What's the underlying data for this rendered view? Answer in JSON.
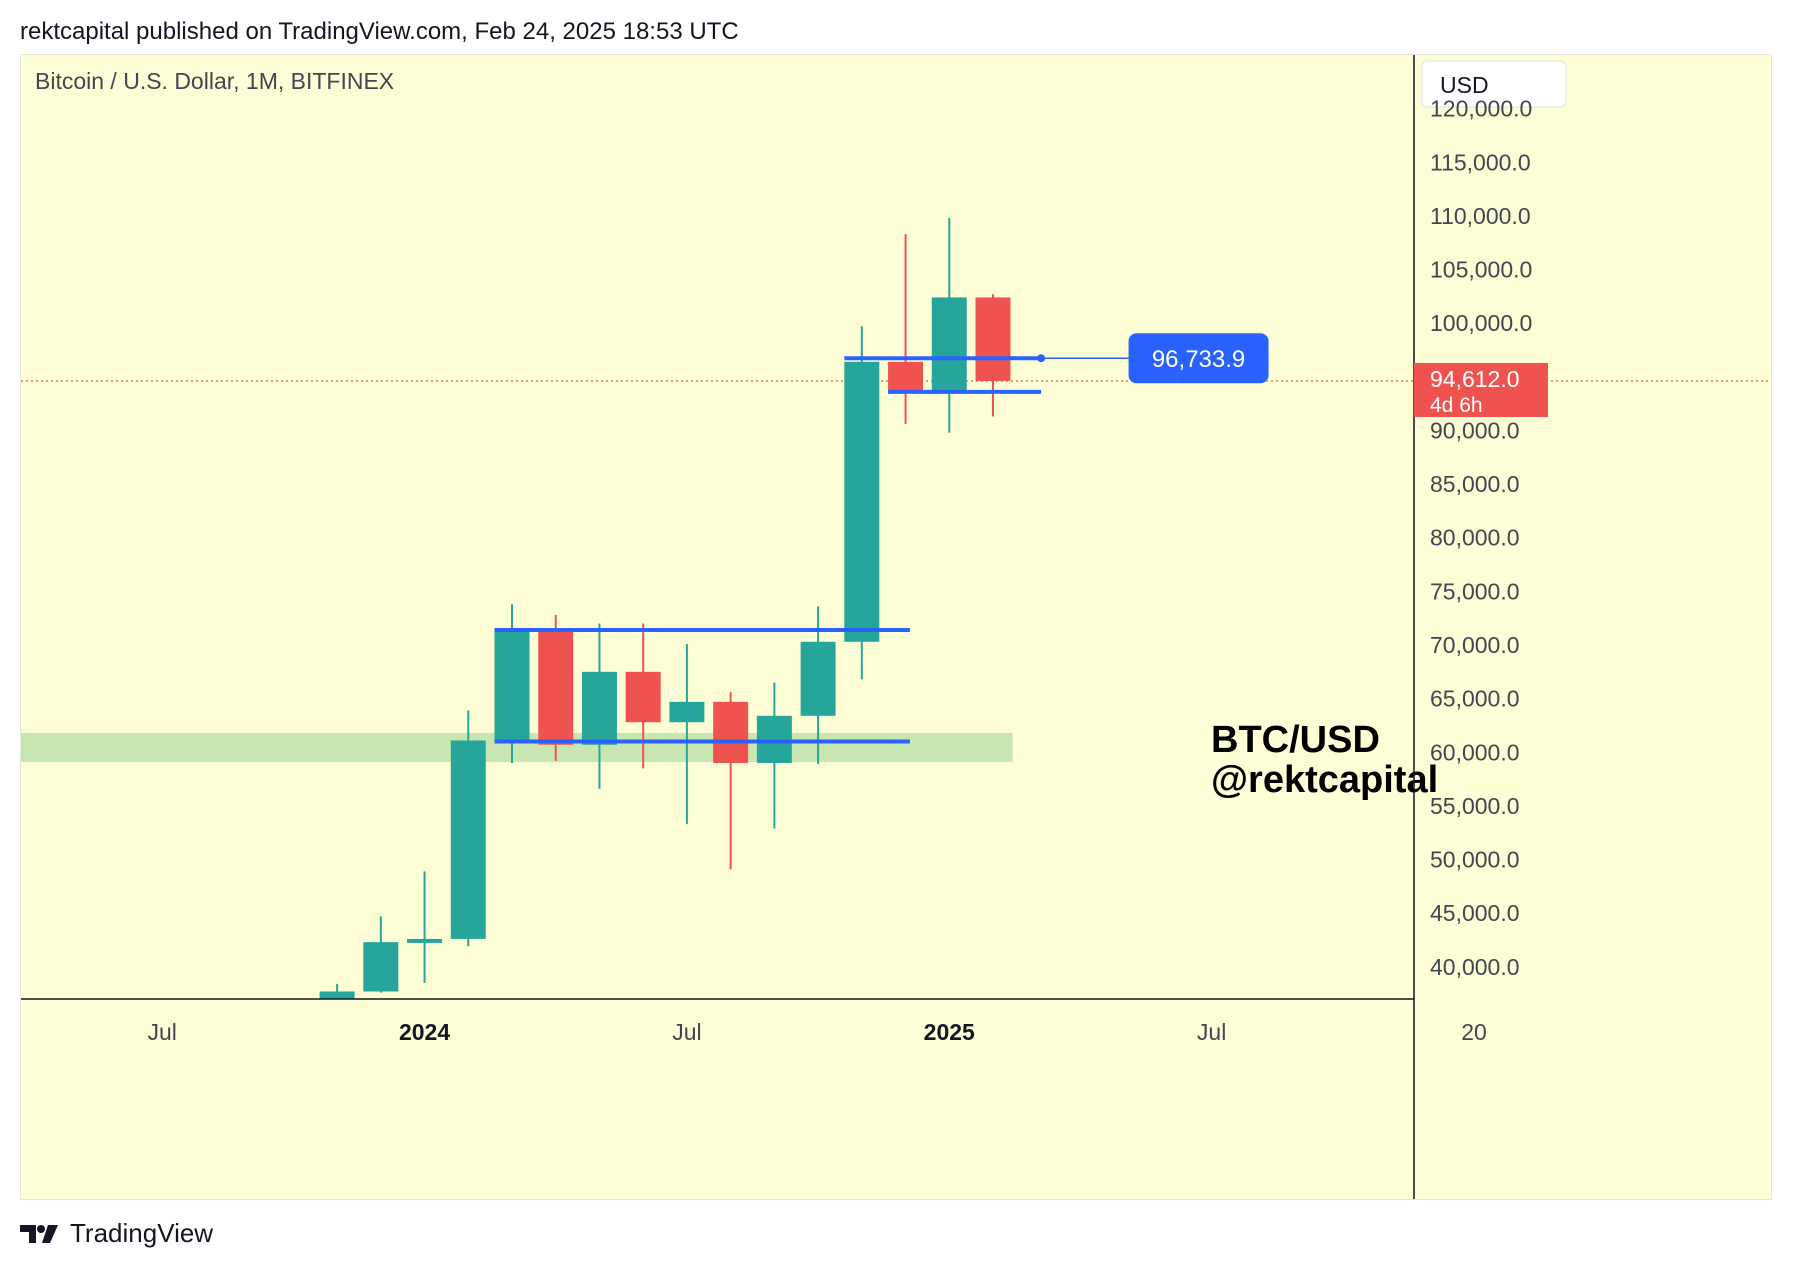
{
  "header": {
    "published_line": "rektcapital published on TradingView.com, Feb 24, 2025 18:53 UTC"
  },
  "footer": {
    "brand": "TradingView",
    "logo_icon": "tradingview-logo-icon"
  },
  "colors": {
    "background": "#fefed6",
    "bull": "#26a69a",
    "bear": "#ef5350",
    "level_line": "#2962ff",
    "support_zone": "#c8e6b0",
    "price_line": "#ef5350"
  },
  "chart_data": {
    "type": "candlestick",
    "symbol_title": "Bitcoin / U.S. Dollar, 1M, BITFINEX",
    "currency_label": "USD",
    "timeframe": "1M",
    "ylim": [
      37000,
      125000
    ],
    "y_ticks": [
      "120,000.0",
      "115,000.0",
      "110,000.0",
      "105,000.0",
      "100,000.0",
      "90,000.0",
      "85,000.0",
      "80,000.0",
      "75,000.0",
      "70,000.0",
      "65,000.0",
      "60,000.0",
      "55,000.0",
      "50,000.0",
      "45,000.0",
      "40,000.0"
    ],
    "y_tick_values": [
      120000,
      115000,
      110000,
      105000,
      100000,
      90000,
      85000,
      80000,
      75000,
      70000,
      65000,
      60000,
      55000,
      50000,
      45000,
      40000
    ],
    "x_labels": [
      {
        "label": "Jul",
        "date": "2023-07",
        "bold": false
      },
      {
        "label": "2024",
        "date": "2024-01",
        "bold": true
      },
      {
        "label": "Jul",
        "date": "2024-07",
        "bold": false
      },
      {
        "label": "2025",
        "date": "2025-01",
        "bold": true
      },
      {
        "label": "Jul",
        "date": "2025-07",
        "bold": false
      },
      {
        "label": "20",
        "date": "2026-01",
        "bold": false
      }
    ],
    "x_range": [
      "2023-04",
      "2026-01"
    ],
    "candles": [
      {
        "date": "2023-11",
        "open": 34600,
        "high": 38400,
        "low": 34500,
        "close": 37700
      },
      {
        "date": "2023-12",
        "open": 37700,
        "high": 44700,
        "low": 37600,
        "close": 42300
      },
      {
        "date": "2024-01",
        "open": 42300,
        "high": 48900,
        "low": 38500,
        "close": 42600
      },
      {
        "date": "2024-02",
        "open": 42600,
        "high": 63900,
        "low": 41900,
        "close": 61100
      },
      {
        "date": "2024-03",
        "open": 61100,
        "high": 73800,
        "low": 59000,
        "close": 71300
      },
      {
        "date": "2024-04",
        "open": 71300,
        "high": 72800,
        "low": 59200,
        "close": 60700
      },
      {
        "date": "2024-05",
        "open": 60700,
        "high": 72000,
        "low": 56600,
        "close": 67500
      },
      {
        "date": "2024-06",
        "open": 67500,
        "high": 72000,
        "low": 58500,
        "close": 62800
      },
      {
        "date": "2024-07",
        "open": 62800,
        "high": 70100,
        "low": 53300,
        "close": 64700
      },
      {
        "date": "2024-08",
        "open": 64700,
        "high": 65600,
        "low": 49100,
        "close": 59000
      },
      {
        "date": "2024-09",
        "open": 59000,
        "high": 66500,
        "low": 52900,
        "close": 63400
      },
      {
        "date": "2024-10",
        "open": 63400,
        "high": 73600,
        "low": 58900,
        "close": 70300
      },
      {
        "date": "2024-11",
        "open": 70300,
        "high": 99700,
        "low": 66800,
        "close": 96400
      },
      {
        "date": "2024-12",
        "open": 96400,
        "high": 108300,
        "low": 90600,
        "close": 93500
      },
      {
        "date": "2025-01",
        "open": 93500,
        "high": 109800,
        "low": 89800,
        "close": 102400
      },
      {
        "date": "2025-02",
        "open": 102400,
        "high": 102700,
        "low": 91300,
        "close": 94612
      }
    ],
    "horizontal_lines": [
      {
        "price": 71400,
        "from": "2024-03",
        "to": "2024-12"
      },
      {
        "price": 61000,
        "from": "2024-03",
        "to": "2024-12"
      },
      {
        "price": 96733.9,
        "from": "2024-11",
        "to": "2025-03"
      },
      {
        "price": 93600,
        "from": "2024-12",
        "to": "2025-03"
      }
    ],
    "support_zone": {
      "from": "2023-04",
      "to": "2025-02",
      "low": 59100,
      "high": 61800
    },
    "callout": {
      "price": 96733.9,
      "label": "96,733.9",
      "from": "2025-03",
      "to": "2025-05"
    },
    "last_price": {
      "value": 94612,
      "label": "94,612.0",
      "countdown": "4d 6h"
    },
    "annotation": {
      "line1": "BTC/USD",
      "line2": "@rektcapital"
    }
  }
}
